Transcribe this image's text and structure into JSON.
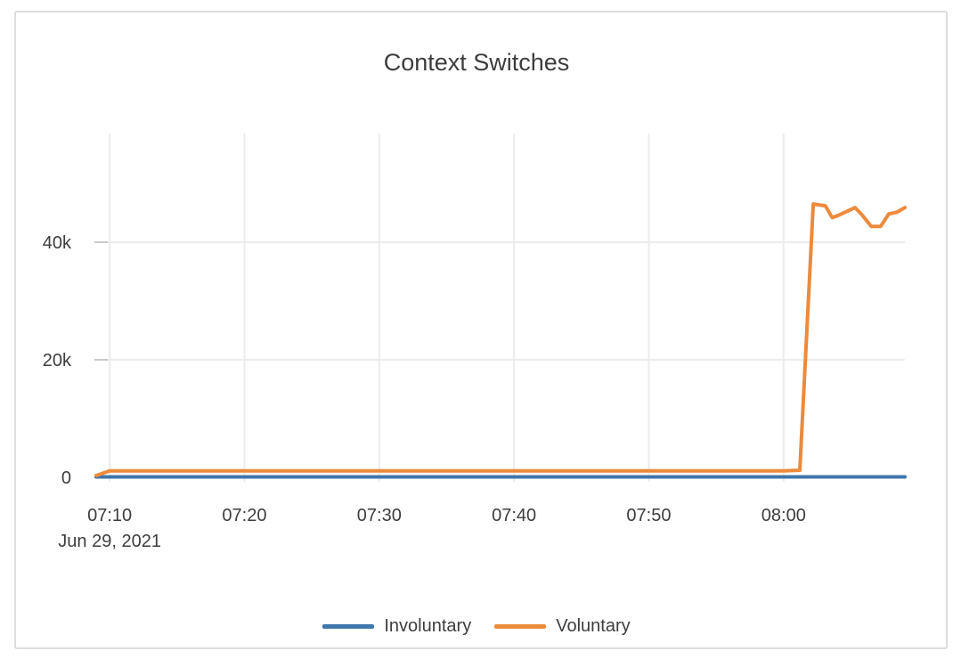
{
  "theme": {
    "background": "#ffffff",
    "card_border": "#dddddd",
    "grid_color": "#ececec",
    "tick_color": "#c9c9c9",
    "zeroline_color": "#d9d9d9",
    "text_color": "#3d3d3d"
  },
  "chart_data": {
    "type": "line",
    "title": "Context Switches",
    "xlabel": "",
    "ylabel": "",
    "legend_position": "bottom",
    "grid": true,
    "x_axis": {
      "start": "07:09:00",
      "end": "08:09:00",
      "ticks": [
        "07:10",
        "07:20",
        "07:30",
        "07:40",
        "07:50",
        "08:00"
      ],
      "date_label": "Jun 29, 2021"
    },
    "y_axis": {
      "ticks": [
        {
          "value": 0,
          "label": "0"
        },
        {
          "value": 20000,
          "label": "20k"
        },
        {
          "value": 40000,
          "label": "40k"
        }
      ],
      "ylim": [
        0,
        58500
      ]
    },
    "series": [
      {
        "name": "Involuntary",
        "color": "#3F76AD",
        "points": [
          {
            "time": "07:09:00",
            "value": 80
          },
          {
            "time": "07:20:00",
            "value": 80
          },
          {
            "time": "07:40:00",
            "value": 80
          },
          {
            "time": "08:00:00",
            "value": 80
          },
          {
            "time": "08:09:00",
            "value": 80
          }
        ]
      },
      {
        "name": "Voluntary",
        "color": "#ED8A3C",
        "points": [
          {
            "time": "07:09:00",
            "value": 300
          },
          {
            "time": "07:10:00",
            "value": 1100
          },
          {
            "time": "07:20:00",
            "value": 1100
          },
          {
            "time": "07:30:00",
            "value": 1100
          },
          {
            "time": "07:40:00",
            "value": 1100
          },
          {
            "time": "07:50:00",
            "value": 1100
          },
          {
            "time": "08:00:00",
            "value": 1100
          },
          {
            "time": "08:01:12",
            "value": 1200
          },
          {
            "time": "08:02:12",
            "value": 46500
          },
          {
            "time": "08:03:06",
            "value": 46200
          },
          {
            "time": "08:03:36",
            "value": 44200
          },
          {
            "time": "08:04:00",
            "value": 44500
          },
          {
            "time": "08:05:18",
            "value": 45900
          },
          {
            "time": "08:05:48",
            "value": 44700
          },
          {
            "time": "08:06:30",
            "value": 42700
          },
          {
            "time": "08:07:12",
            "value": 42700
          },
          {
            "time": "08:07:48",
            "value": 44800
          },
          {
            "time": "08:08:24",
            "value": 45100
          },
          {
            "time": "08:09:00",
            "value": 45900
          }
        ]
      }
    ]
  }
}
